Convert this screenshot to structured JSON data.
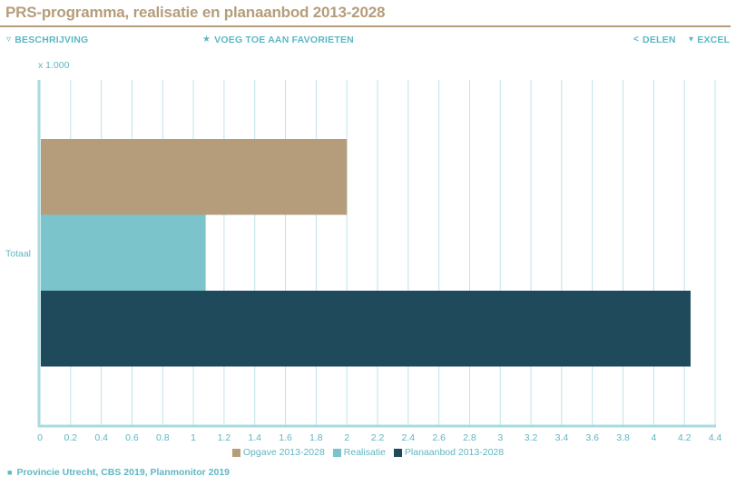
{
  "header": {
    "title": "PRS-programma, realisatie en planaanbod 2013-2028"
  },
  "toolbar": {
    "description_label": "BESCHRIJVING",
    "favorite_label": "VOEG TOE AAN FAVORIETEN",
    "share_label": "DELEN",
    "excel_label": "EXCEL"
  },
  "colors": {
    "title": "#b59d7b",
    "accent": "#5cb8c4",
    "grid": "#bfe3e8",
    "axis": "#a8dbe1",
    "text_muted": "#5fb6c1"
  },
  "chart_data": {
    "type": "bar",
    "orientation": "horizontal",
    "unit_label": "x 1.000",
    "categories": [
      "Totaal"
    ],
    "series": [
      {
        "name": "Opgave 2013-2028",
        "values": [
          2.0
        ],
        "color": "#b59d7b"
      },
      {
        "name": "Realisatie",
        "values": [
          1.08
        ],
        "color": "#7bc4cc"
      },
      {
        "name": "Planaanbod 2013-2028",
        "values": [
          4.24
        ],
        "color": "#1f4a5c"
      }
    ],
    "xlim": [
      0,
      4.4
    ],
    "xticks": [
      "0",
      "0.2",
      "0.4",
      "0.6",
      "0.8",
      "1",
      "1.2",
      "1.4",
      "1.6",
      "1.8",
      "2",
      "2.2",
      "2.4",
      "2.6",
      "2.8",
      "3",
      "3.2",
      "3.4",
      "3.6",
      "3.8",
      "4",
      "4.2",
      "4.4"
    ],
    "grid": true,
    "legend_position": "bottom-center"
  },
  "footer": {
    "source": "Provincie Utrecht, CBS 2019, Planmonitor 2019"
  }
}
